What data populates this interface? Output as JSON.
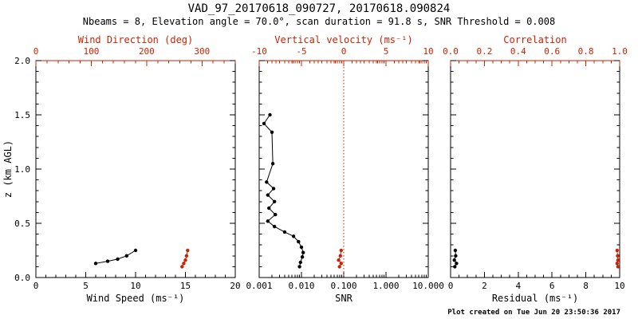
{
  "header": {
    "title": "VAD_97_20170618_090727, 20170618.090824",
    "subtitle": "Nbeams = 8, Elevation angle = 70.0°, scan duration = 91.8 s, SNR Threshold = 0.008"
  },
  "footer": {
    "created": "Plot created on Tue Jun 20 23:50:36 2017"
  },
  "colors": {
    "black": "#000000",
    "red": "#cc2200",
    "background": "#ffffff"
  },
  "chart_data": [
    {
      "type": "scatter",
      "name": "wind",
      "ylabel": "z (km AGL)",
      "ylim": [
        0.0,
        2.0
      ],
      "ymajor": 0.5,
      "yminor": 0.1,
      "show_ytick_labels": true,
      "ytick_labels": [
        "0.0",
        "0.5",
        "1.0",
        "1.5",
        "2.0"
      ],
      "bottom_axis": {
        "label": "Wind Speed (ms⁻¹)",
        "scale": "linear",
        "min": 0,
        "max": 20,
        "ticks": [
          0,
          5,
          10,
          15,
          20
        ],
        "tick_labels": [
          "0",
          "5",
          "10",
          "15",
          "20"
        ],
        "minor_step": 1
      },
      "top_axis": {
        "label": "Wind Direction (deg)",
        "scale": "linear",
        "min": 0,
        "max": 360,
        "ticks": [
          0,
          100,
          200,
          300
        ],
        "tick_labels": [
          "0",
          "100",
          "200",
          "300"
        ],
        "minor_step": 20
      },
      "series": [
        {
          "name": "wind-speed",
          "axis": "bottom",
          "color": "black",
          "points": [
            [
              6.0,
              0.13
            ],
            [
              7.2,
              0.15
            ],
            [
              8.2,
              0.17
            ],
            [
              9.1,
              0.2
            ],
            [
              10.0,
              0.25
            ]
          ]
        },
        {
          "name": "wind-direction",
          "axis": "top",
          "color": "red",
          "points": [
            [
              264,
              0.1
            ],
            [
              267,
              0.13
            ],
            [
              270,
              0.16
            ],
            [
              272,
              0.2
            ],
            [
              274,
              0.25
            ]
          ]
        }
      ]
    },
    {
      "type": "scatter",
      "name": "snr",
      "ylabel": "",
      "ylim": [
        0.0,
        2.0
      ],
      "ymajor": 0.5,
      "yminor": 0.1,
      "show_ytick_labels": false,
      "ytick_labels": [],
      "bottom_axis": {
        "label": "SNR",
        "scale": "log",
        "min": 0.001,
        "max": 10,
        "ticks": [
          0.001,
          0.01,
          0.1,
          1,
          10
        ],
        "tick_labels": [
          "0.001",
          "0.010",
          "0.100",
          "1.000",
          "10.000"
        ]
      },
      "top_axis": {
        "label": "Vertical velocity (ms⁻¹)",
        "scale": "linear",
        "min": -10,
        "max": 10,
        "ticks": [
          -10,
          -5,
          0,
          5,
          10
        ],
        "tick_labels": [
          "-10",
          "-5",
          "0",
          "5",
          "10"
        ],
        "minor_step": 1
      },
      "ref_line": {
        "axis": "top",
        "value": 0,
        "color": "red",
        "style": "dotted"
      },
      "series": [
        {
          "name": "snr-profile",
          "axis": "bottom",
          "color": "black",
          "points": [
            [
              0.0018,
              1.5
            ],
            [
              0.0013,
              1.42
            ],
            [
              0.002,
              1.34
            ],
            [
              0.0021,
              1.05
            ],
            [
              0.0015,
              0.88
            ],
            [
              0.0022,
              0.82
            ],
            [
              0.0016,
              0.76
            ],
            [
              0.0023,
              0.7
            ],
            [
              0.0017,
              0.64
            ],
            [
              0.0024,
              0.58
            ],
            [
              0.0016,
              0.52
            ],
            [
              0.0023,
              0.47
            ],
            [
              0.004,
              0.42
            ],
            [
              0.0065,
              0.38
            ],
            [
              0.0085,
              0.33
            ],
            [
              0.01,
              0.28
            ],
            [
              0.011,
              0.23
            ],
            [
              0.0105,
              0.19
            ],
            [
              0.0095,
              0.14
            ],
            [
              0.009,
              0.1
            ]
          ]
        },
        {
          "name": "vertical-velocity",
          "axis": "top",
          "color": "red",
          "points": [
            [
              -0.5,
              0.1
            ],
            [
              -0.3,
              0.13
            ],
            [
              -0.6,
              0.16
            ],
            [
              -0.4,
              0.2
            ],
            [
              -0.3,
              0.25
            ]
          ]
        }
      ]
    },
    {
      "type": "scatter",
      "name": "residual",
      "ylabel": "",
      "ylim": [
        0.0,
        2.0
      ],
      "ymajor": 0.5,
      "yminor": 0.1,
      "show_ytick_labels": false,
      "ytick_labels": [],
      "bottom_axis": {
        "label": "Residual (ms⁻¹)",
        "scale": "linear",
        "min": 0,
        "max": 10,
        "ticks": [
          0,
          2,
          4,
          6,
          8,
          10
        ],
        "tick_labels": [
          "0",
          "2",
          "4",
          "6",
          "8",
          "10"
        ],
        "minor_step": 0.5
      },
      "top_axis": {
        "label": "Correlation",
        "scale": "linear",
        "min": 0,
        "max": 1,
        "ticks": [
          0,
          0.2,
          0.4,
          0.6,
          0.8,
          1.0
        ],
        "tick_labels": [
          "0.0",
          "0.2",
          "0.4",
          "0.6",
          "0.8",
          "1.0"
        ],
        "minor_step": 0.05
      },
      "series": [
        {
          "name": "residual",
          "axis": "bottom",
          "color": "black",
          "points": [
            [
              0.25,
              0.1
            ],
            [
              0.35,
              0.13
            ],
            [
              0.22,
              0.16
            ],
            [
              0.3,
              0.2
            ],
            [
              0.28,
              0.25
            ]
          ]
        },
        {
          "name": "correlation",
          "axis": "top",
          "color": "red",
          "points": [
            [
              0.99,
              0.1
            ],
            [
              0.985,
              0.13
            ],
            [
              0.99,
              0.16
            ],
            [
              0.988,
              0.2
            ],
            [
              0.985,
              0.25
            ]
          ]
        }
      ]
    }
  ]
}
